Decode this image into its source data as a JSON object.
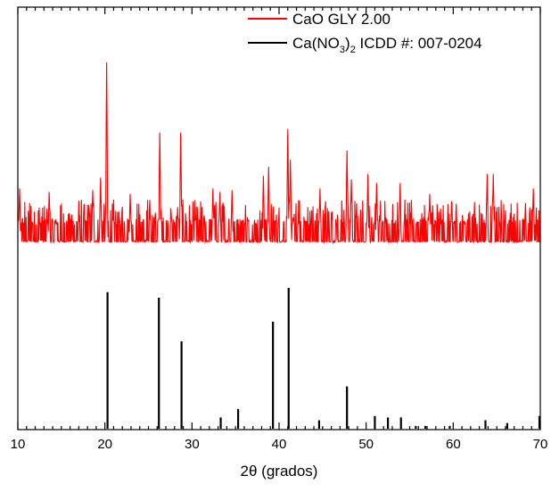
{
  "chart_data": {
    "type": "line",
    "title": "",
    "xlabel": "2θ (grados)",
    "ylabel": "",
    "xlim": [
      10,
      70
    ],
    "x_ticks": [
      "10",
      "20",
      "30",
      "40",
      "50",
      "60",
      "70"
    ],
    "legend_position": "top-right",
    "y_axis_labels": "none",
    "series": [
      {
        "name": "CaO GLY 2.00",
        "name_subscripts": [],
        "color": "#ff0000",
        "style": "noisy-line",
        "baseline_intensity": 0.12,
        "peaks": [
          {
            "x": 10.2,
            "intensity": 0.3
          },
          {
            "x": 13.6,
            "intensity": 0.28
          },
          {
            "x": 18.6,
            "intensity": 0.29
          },
          {
            "x": 19.5,
            "intensity": 0.36
          },
          {
            "x": 20.2,
            "intensity": 1.0
          },
          {
            "x": 22.9,
            "intensity": 0.27
          },
          {
            "x": 26.3,
            "intensity": 0.61
          },
          {
            "x": 28.7,
            "intensity": 0.61
          },
          {
            "x": 32.4,
            "intensity": 0.3
          },
          {
            "x": 33.2,
            "intensity": 0.28
          },
          {
            "x": 34.6,
            "intensity": 0.29
          },
          {
            "x": 38.2,
            "intensity": 0.37
          },
          {
            "x": 38.8,
            "intensity": 0.42
          },
          {
            "x": 41.0,
            "intensity": 0.63
          },
          {
            "x": 41.3,
            "intensity": 0.46
          },
          {
            "x": 44.7,
            "intensity": 0.3
          },
          {
            "x": 47.8,
            "intensity": 0.51
          },
          {
            "x": 48.3,
            "intensity": 0.35
          },
          {
            "x": 50.2,
            "intensity": 0.38
          },
          {
            "x": 51.2,
            "intensity": 0.33
          },
          {
            "x": 53.9,
            "intensity": 0.33
          },
          {
            "x": 57.3,
            "intensity": 0.27
          },
          {
            "x": 63.9,
            "intensity": 0.38
          },
          {
            "x": 64.6,
            "intensity": 0.38
          },
          {
            "x": 69.2,
            "intensity": 0.3
          }
        ]
      },
      {
        "name": "Ca(NO3)2 ICDD #: 007-0204",
        "name_subscripts": [
          "3",
          "2"
        ],
        "color": "#000000",
        "style": "stick",
        "peaks": [
          {
            "x": 20.3,
            "intensity": 0.97
          },
          {
            "x": 26.2,
            "intensity": 0.93
          },
          {
            "x": 28.8,
            "intensity": 0.62
          },
          {
            "x": 33.3,
            "intensity": 0.08
          },
          {
            "x": 35.3,
            "intensity": 0.14
          },
          {
            "x": 39.3,
            "intensity": 0.76
          },
          {
            "x": 41.1,
            "intensity": 1.0
          },
          {
            "x": 44.6,
            "intensity": 0.06
          },
          {
            "x": 47.8,
            "intensity": 0.3
          },
          {
            "x": 51.0,
            "intensity": 0.09
          },
          {
            "x": 52.5,
            "intensity": 0.08
          },
          {
            "x": 54.0,
            "intensity": 0.08
          },
          {
            "x": 55.7,
            "intensity": 0.02
          },
          {
            "x": 56.8,
            "intensity": 0.02
          },
          {
            "x": 59.6,
            "intensity": 0.02
          },
          {
            "x": 63.7,
            "intensity": 0.06
          },
          {
            "x": 66.2,
            "intensity": 0.04
          },
          {
            "x": 69.9,
            "intensity": 0.09
          }
        ]
      }
    ]
  }
}
